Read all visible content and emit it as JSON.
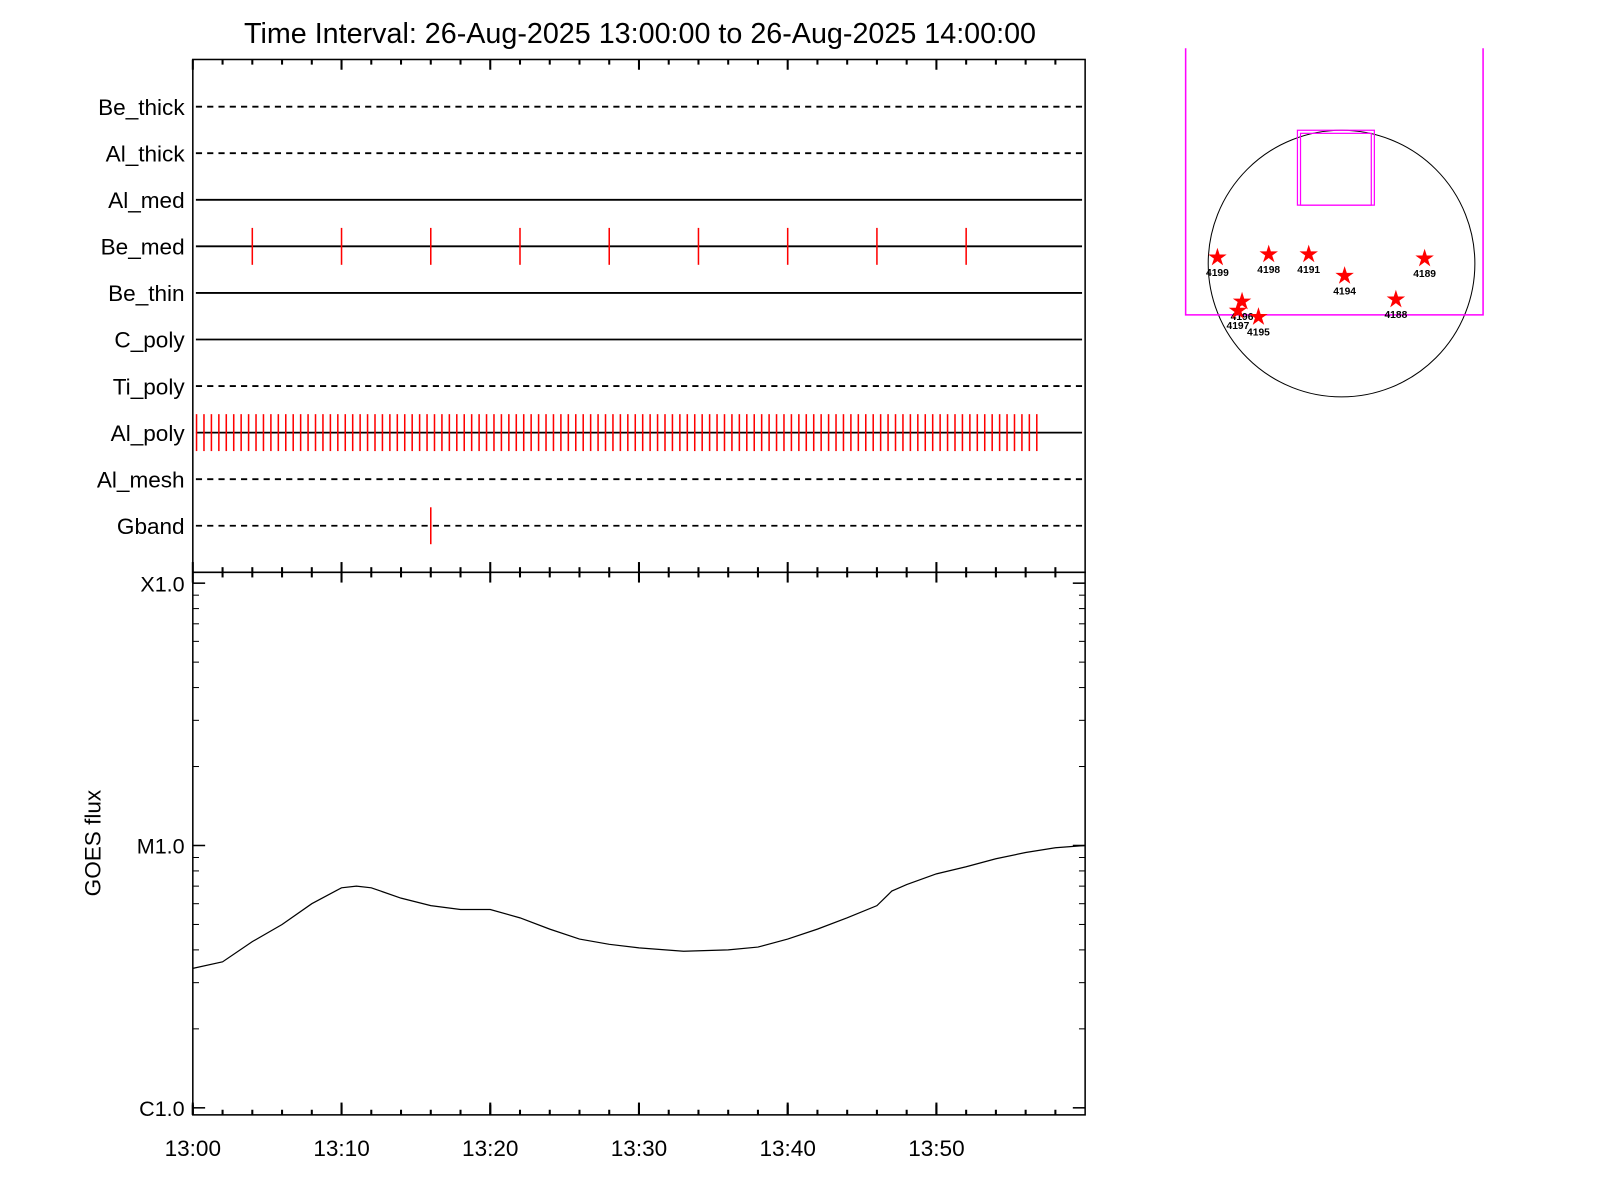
{
  "chart_data": [
    {
      "type": "events",
      "title": "Time Interval: 26-Aug-2025 13:00:00 to 26-Aug-2025 14:00:00",
      "xlim": [
        "13:00",
        "14:00"
      ],
      "color": "#ff0000",
      "rows": [
        {
          "name": "Be_thick",
          "style": "dashed",
          "events": []
        },
        {
          "name": "Al_thick",
          "style": "dashed",
          "events": []
        },
        {
          "name": "Al_med",
          "style": "solid",
          "events": []
        },
        {
          "name": "Be_med",
          "style": "solid",
          "events": [
            "13:04",
            "13:10",
            "13:16",
            "13:22",
            "13:28",
            "13:34",
            "13:40",
            "13:46",
            "13:52"
          ]
        },
        {
          "name": "Be_thin",
          "style": "solid",
          "events": []
        },
        {
          "name": "C_poly",
          "style": "solid",
          "events": []
        },
        {
          "name": "Ti_poly",
          "style": "dashed",
          "events": []
        },
        {
          "name": "Al_poly",
          "style": "solid",
          "events": [
            "13:00:15",
            "13:00:45",
            "13:01:15",
            "13:01:45",
            "13:02:15",
            "13:02:45",
            "13:03:15",
            "13:03:45",
            "13:04:15",
            "13:04:45",
            "13:05:15",
            "13:05:45",
            "13:06:15",
            "13:06:45",
            "13:07:15",
            "13:07:45",
            "13:08:15",
            "13:08:45",
            "13:09:15",
            "13:09:45",
            "13:10:15",
            "13:10:45",
            "13:11:15",
            "13:11:45",
            "13:12:15",
            "13:12:45",
            "13:13:15",
            "13:13:45",
            "13:14:15",
            "13:14:45",
            "13:15:15",
            "13:15:45",
            "13:16:15",
            "13:16:45",
            "13:17:15",
            "13:17:45",
            "13:18:15",
            "13:18:45",
            "13:19:15",
            "13:19:45",
            "13:20:15",
            "13:20:45",
            "13:21:15",
            "13:21:45",
            "13:22:15",
            "13:22:45",
            "13:23:15",
            "13:23:45",
            "13:24:15",
            "13:24:45",
            "13:25:15",
            "13:25:45",
            "13:26:15",
            "13:26:45",
            "13:27:15",
            "13:27:45",
            "13:28:15",
            "13:28:45",
            "13:29:15",
            "13:29:45",
            "13:30:15",
            "13:30:45",
            "13:31:15",
            "13:31:45",
            "13:32:15",
            "13:32:45",
            "13:33:15",
            "13:33:45",
            "13:34:15",
            "13:34:45",
            "13:35:15",
            "13:35:45",
            "13:36:15",
            "13:36:45",
            "13:37:15",
            "13:37:45",
            "13:38:15",
            "13:38:45",
            "13:39:15",
            "13:39:45",
            "13:40:15",
            "13:40:45",
            "13:41:15",
            "13:41:45",
            "13:42:15",
            "13:42:45",
            "13:43:15",
            "13:43:45",
            "13:44:15",
            "13:44:45",
            "13:45:15",
            "13:45:45",
            "13:46:15",
            "13:46:45",
            "13:47:15",
            "13:47:45",
            "13:48:15",
            "13:48:45",
            "13:49:15",
            "13:49:45",
            "13:50:15",
            "13:50:45",
            "13:51:15",
            "13:51:45",
            "13:52:15",
            "13:52:45",
            "13:53:15",
            "13:53:45",
            "13:54:15",
            "13:54:45",
            "13:55:15",
            "13:55:45",
            "13:56:15",
            "13:56:45"
          ]
        },
        {
          "name": "Al_mesh",
          "style": "dashed",
          "events": []
        },
        {
          "name": "Gband",
          "style": "dashed",
          "events": [
            "13:16"
          ]
        }
      ]
    },
    {
      "type": "line",
      "ylabel": "GOES flux",
      "color": "#000000",
      "log_scale": true,
      "xlim": [
        "13:00",
        "14:00"
      ],
      "xticks": [
        "13:00",
        "13:10",
        "13:20",
        "13:30",
        "13:40",
        "13:50"
      ],
      "ylim": [
        9.4e-07,
        0.00011
      ],
      "yticks": [
        {
          "value": 1e-06,
          "label": "C1.0"
        },
        {
          "value": 1e-05,
          "label": "M1.0"
        },
        {
          "value": 0.0001,
          "label": "X1.0"
        }
      ],
      "x": [
        "13:00",
        "13:02",
        "13:04",
        "13:06",
        "13:08",
        "13:10",
        "13:11",
        "13:12",
        "13:14",
        "13:16",
        "13:18",
        "13:20",
        "13:22",
        "13:24",
        "13:26",
        "13:28",
        "13:30",
        "13:33",
        "13:36",
        "13:38",
        "13:40",
        "13:42",
        "13:44",
        "13:46",
        "13:47",
        "13:48",
        "13:50",
        "13:52",
        "13:54",
        "13:56",
        "13:58",
        "14:00"
      ],
      "values": [
        3.4e-06,
        3.6e-06,
        4.3e-06,
        5e-06,
        6e-06,
        6.9e-06,
        7e-06,
        6.9e-06,
        6.3e-06,
        5.9e-06,
        5.7e-06,
        5.7e-06,
        5.3e-06,
        4.8e-06,
        4.4e-06,
        4.2e-06,
        4.07e-06,
        3.95e-06,
        4e-06,
        4.1e-06,
        4.4e-06,
        4.8e-06,
        5.3e-06,
        5.9e-06,
        6.7e-06,
        7.1e-06,
        7.8e-06,
        8.3e-06,
        8.9e-06,
        9.4e-06,
        9.8e-06,
        1e-05
      ]
    },
    {
      "type": "map",
      "color": "#ff0000",
      "fov_color": "#ff00ff",
      "regions": [
        "4199",
        "4198",
        "4191",
        "4194",
        "4189",
        "4188",
        "4196",
        "4197",
        "4195"
      ]
    }
  ]
}
